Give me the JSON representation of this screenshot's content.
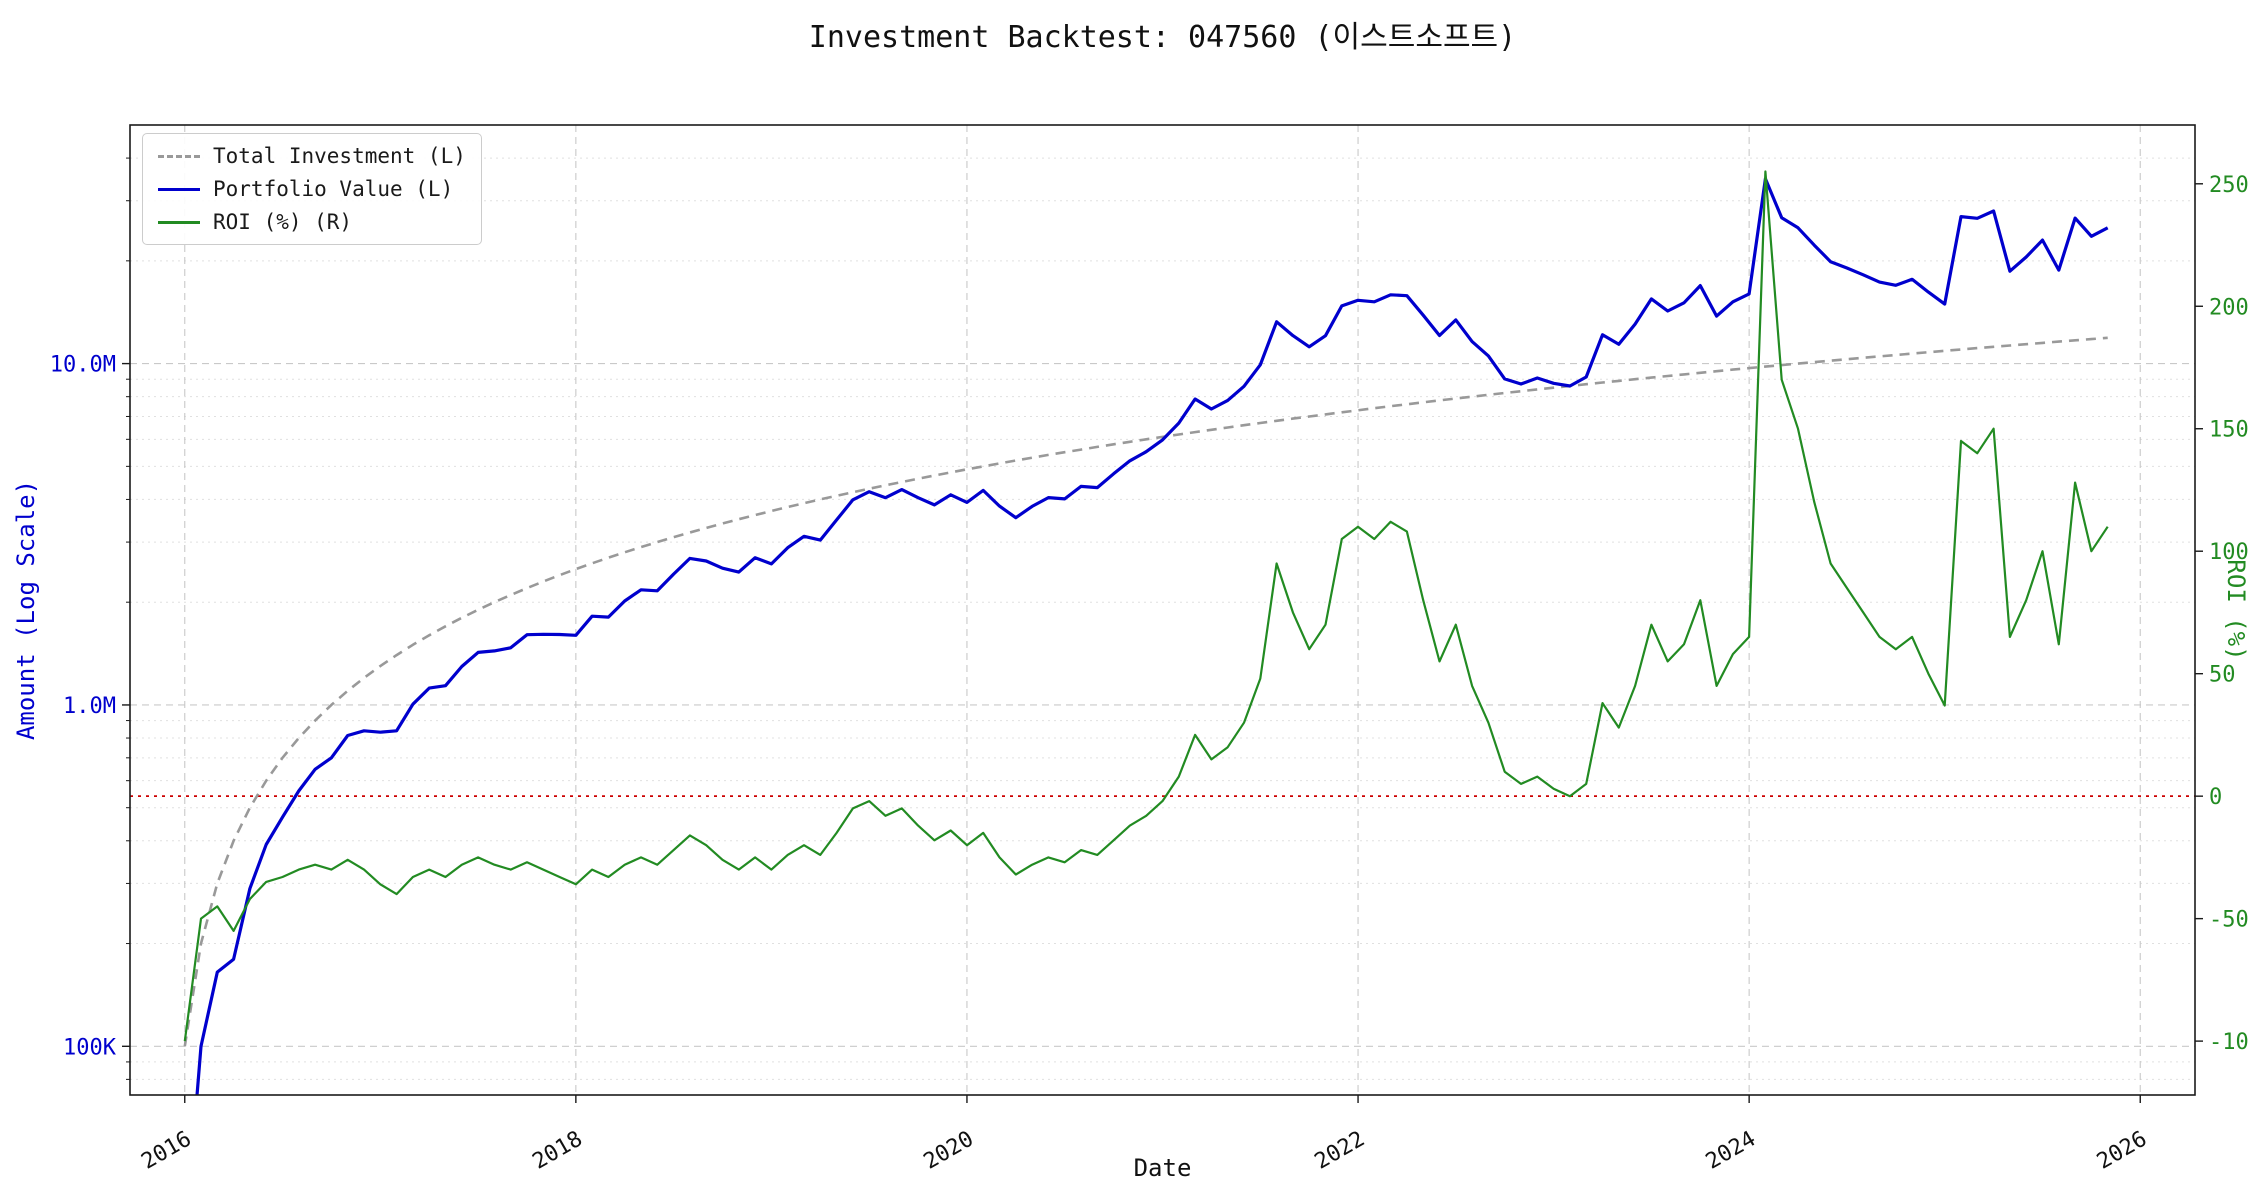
{
  "chart_data": {
    "type": "line",
    "title": "Investment Backtest: 047560 (이스트소프트)",
    "xlabel": "Date",
    "x": {
      "start": "2016-01",
      "interval": "monthly",
      "count": 119
    },
    "x_axis": {
      "ticks": [
        2016,
        2018,
        2020,
        2022,
        2024,
        2026
      ],
      "lim": [
        2015.72,
        2026.28
      ]
    },
    "left_axis": {
      "label": "Amount (Log Scale)",
      "scale": "log",
      "lim": [
        72000,
        50000000
      ],
      "color": "#0000cd",
      "ticks": [
        {
          "value": 100000,
          "label": "100K"
        },
        {
          "value": 1000000,
          "label": "1.0M"
        },
        {
          "value": 10000000,
          "label": "10.0M"
        }
      ]
    },
    "right_axis": {
      "label": "ROI (%)",
      "lim": [
        -122,
        274
      ],
      "color": "#228b22",
      "ticks": [
        -100,
        -50,
        0,
        50,
        100,
        150,
        200,
        250
      ]
    },
    "zero_line": {
      "axis": "right",
      "value": 0,
      "color": "#cc0000",
      "style": "dotted"
    },
    "grid": true,
    "legend_location": "upper left",
    "series": [
      {
        "name": "Total Investment (L)",
        "axis": "left",
        "color": "#999999",
        "style": "dashed",
        "width": 2.6,
        "values": [
          100000,
          200000,
          300000,
          400000,
          500000,
          600000,
          700000,
          800000,
          900000,
          1000000,
          1100000,
          1200000,
          1300000,
          1400000,
          1500000,
          1600000,
          1700000,
          1800000,
          1900000,
          2000000,
          2100000,
          2200000,
          2300000,
          2400000,
          2500000,
          2600000,
          2700000,
          2800000,
          2900000,
          3000000,
          3100000,
          3200000,
          3300000,
          3400000,
          3500000,
          3600000,
          3700000,
          3800000,
          3900000,
          4000000,
          4100000,
          4200000,
          4300000,
          4400000,
          4500000,
          4600000,
          4700000,
          4800000,
          4900000,
          5000000,
          5100000,
          5200000,
          5300000,
          5400000,
          5500000,
          5600000,
          5700000,
          5800000,
          5900000,
          6000000,
          6100000,
          6200000,
          6300000,
          6400000,
          6500000,
          6600000,
          6700000,
          6800000,
          6900000,
          7000000,
          7100000,
          7200000,
          7300000,
          7400000,
          7500000,
          7600000,
          7700000,
          7800000,
          7900000,
          8000000,
          8100000,
          8200000,
          8300000,
          8400000,
          8500000,
          8600000,
          8700000,
          8800000,
          8900000,
          9000000,
          9100000,
          9200000,
          9300000,
          9400000,
          9500000,
          9600000,
          9700000,
          9800000,
          9900000,
          10000000,
          10100000,
          10200000,
          10300000,
          10400000,
          10500000,
          10600000,
          10700000,
          10800000,
          10900000,
          11000000,
          11100000,
          11200000,
          11300000,
          11400000,
          11500000,
          11600000,
          11700000,
          11800000,
          11900000
        ]
      },
      {
        "name": "Portfolio Value (L)",
        "axis": "left",
        "color": "#0000cd",
        "style": "solid",
        "width": 3.2,
        "values": [
          0,
          100000,
          165000,
          180000,
          290000,
          390000,
          469000,
          560000,
          648000,
          700000,
          814000,
          840000,
          832000,
          840000,
          1005000,
          1120000,
          1139000,
          1296000,
          1425000,
          1440000,
          1470000,
          1606000,
          1610000,
          1608000,
          1600000,
          1820000,
          1809000,
          2016000,
          2175000,
          2160000,
          2418000,
          2688000,
          2640000,
          2516000,
          2450000,
          2700000,
          2590000,
          2888000,
          3120000,
          3040000,
          3485000,
          3990000,
          4214000,
          4048000,
          4275000,
          4048000,
          3854000,
          4128000,
          3920000,
          4250000,
          3825000,
          3536000,
          3816000,
          4050000,
          4015000,
          4368000,
          4332000,
          4756000,
          5192000,
          5520000,
          5978000,
          6696000,
          7875000,
          7360000,
          7800000,
          8580000,
          9916000,
          13260000,
          12075000,
          11200000,
          12070000,
          14760000,
          15330000,
          15170000,
          15900000,
          15808000,
          13860000,
          12090000,
          13430000,
          11600000,
          10530000,
          9020000,
          8715000,
          9072000,
          8755000,
          8600000,
          9135000,
          12144000,
          11392000,
          13050000,
          15470000,
          14260000,
          15066000,
          16920000,
          13775000,
          15168000,
          16005000,
          34790000,
          26730000,
          25000000,
          22220000,
          19890000,
          19055000,
          18200000,
          17325000,
          16960000,
          17655000,
          16200000,
          14933000,
          26950000,
          26640000,
          28000000,
          18645000,
          20520000,
          23000000,
          18792000,
          26676000,
          23600000,
          24990000
        ]
      },
      {
        "name": "ROI (%) (R)",
        "axis": "right",
        "color": "#228b22",
        "style": "solid",
        "width": 2.2,
        "values": [
          -100,
          -50,
          -45,
          -55,
          -42,
          -35,
          -33,
          -30,
          -28,
          -30,
          -26,
          -30,
          -36,
          -40,
          -33,
          -30,
          -33,
          -28,
          -25,
          -28,
          -30,
          -27,
          -30,
          -33,
          -36,
          -30,
          -33,
          -28,
          -25,
          -28,
          -22,
          -16,
          -20,
          -26,
          -30,
          -25,
          -30,
          -24,
          -20,
          -24,
          -15,
          -5,
          -2,
          -8,
          -5,
          -12,
          -18,
          -14,
          -20,
          -15,
          -25,
          -32,
          -28,
          -25,
          -27,
          -22,
          -24,
          -18,
          -12,
          -8,
          -2,
          8,
          25,
          15,
          20,
          30,
          48,
          95,
          75,
          60,
          70,
          105,
          110,
          105,
          112,
          108,
          80,
          55,
          70,
          45,
          30,
          10,
          5,
          8,
          3,
          0,
          5,
          38,
          28,
          45,
          70,
          55,
          62,
          80,
          45,
          58,
          65,
          255,
          170,
          150,
          120,
          95,
          85,
          75,
          65,
          60,
          65,
          50,
          37,
          145,
          140,
          150,
          65,
          80,
          100,
          62,
          128,
          100,
          110
        ]
      }
    ]
  }
}
